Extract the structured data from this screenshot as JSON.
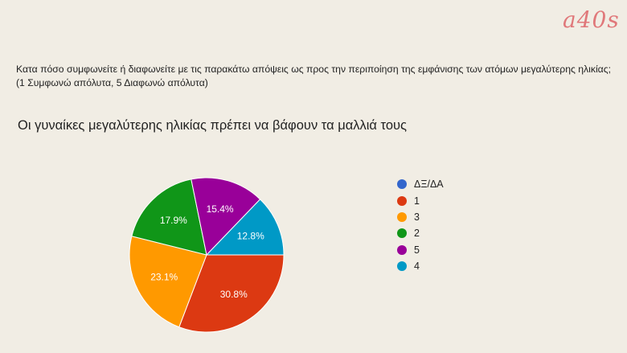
{
  "logo": "a40s",
  "question": "Κατα πόσο συμφωνείτε ή διαφωνείτε με τις παρακάτω απόψεις ως προς την περιποίηση της εμφάνισης των ατόμων μεγαλύτερης ηλικίας;   (1 Συμφωνώ απόλυτα, 5 Διαφωνώ απόλυτα)",
  "chart_data": {
    "type": "pie",
    "title": "Οι γυναίκες μεγαλύτερης ηλικίας πρέπει να βάφουν τα μαλλιά τους",
    "legend_position": "right",
    "slices": [
      {
        "label": "ΔΞ/ΔΑ",
        "value": 0,
        "display": "",
        "color": "#3366cc"
      },
      {
        "label": "1",
        "value": 30.8,
        "display": "30.8%",
        "color": "#dc3912"
      },
      {
        "label": "3",
        "value": 23.1,
        "display": "23.1%",
        "color": "#ff9900"
      },
      {
        "label": "2",
        "value": 17.9,
        "display": "17.9%",
        "color": "#109618"
      },
      {
        "label": "5",
        "value": 15.4,
        "display": "15.4%",
        "color": "#990099"
      },
      {
        "label": "4",
        "value": 12.8,
        "display": "12.8%",
        "color": "#0099c6"
      }
    ]
  }
}
